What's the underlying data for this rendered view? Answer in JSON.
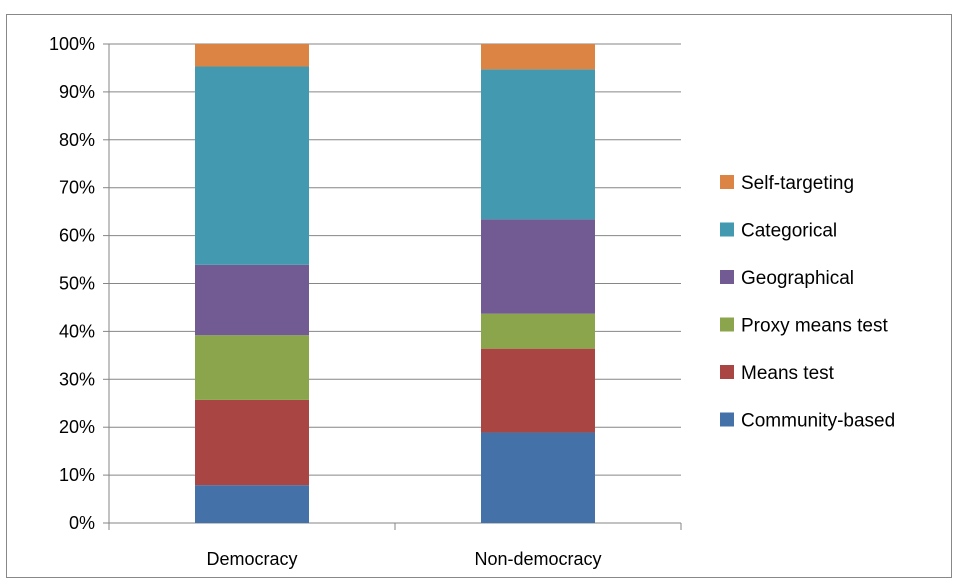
{
  "chart_data": {
    "type": "bar",
    "stacked": "percent",
    "categories": [
      "Democracy",
      "Non-democracy"
    ],
    "series": [
      {
        "name": "Community-based",
        "values": [
          7.9,
          18.9
        ],
        "color": "#4472a8"
      },
      {
        "name": "Means test",
        "values": [
          17.8,
          17.5
        ],
        "color": "#a94643"
      },
      {
        "name": "Proxy means test",
        "values": [
          13.5,
          7.3
        ],
        "color": "#8aa54b"
      },
      {
        "name": "Geographical",
        "values": [
          14.7,
          19.7
        ],
        "color": "#725a92"
      },
      {
        "name": "Categorical",
        "values": [
          41.4,
          31.3
        ],
        "color": "#4299b0"
      },
      {
        "name": "Self-targeting",
        "values": [
          4.7,
          5.3
        ],
        "color": "#dc8443"
      }
    ],
    "yticks": [
      "0%",
      "10%",
      "20%",
      "30%",
      "40%",
      "50%",
      "60%",
      "70%",
      "80%",
      "90%",
      "100%"
    ],
    "ylim": [
      0,
      100
    ],
    "grid": true,
    "legend_position": "right",
    "title": "",
    "xlabel": "",
    "ylabel": ""
  }
}
